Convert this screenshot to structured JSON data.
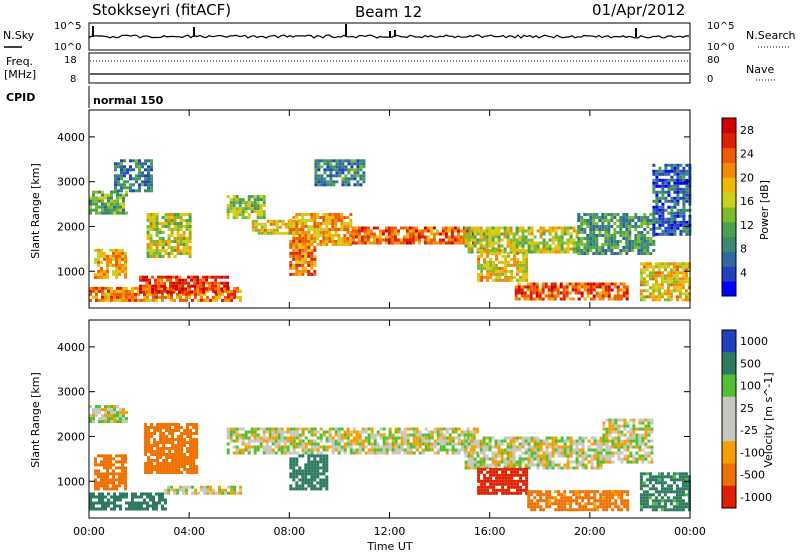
{
  "header": {
    "station": "Stokkseyri (fitACF)",
    "beam": "Beam 12",
    "date": "01/Apr/2012"
  },
  "noise_panel": {
    "left_label": "N.Sky",
    "left_ticks": [
      "10^5",
      "10^0"
    ],
    "right_label": "N.Search",
    "right_ticks": [
      "10^5",
      "10^0"
    ]
  },
  "freq_panel": {
    "left_label_1": "Freq.",
    "left_label_2": "[MHz]",
    "left_ticks": [
      "18",
      "8"
    ],
    "right_label": "Nave",
    "right_ticks": [
      "80",
      "0"
    ]
  },
  "cpid": {
    "label": "CPID",
    "value": "normal 150"
  },
  "time_axis": {
    "label": "Time UT",
    "ticks": [
      "00:00",
      "04:00",
      "08:00",
      "12:00",
      "16:00",
      "20:00",
      "00:00"
    ]
  },
  "range_axis": {
    "label": "Slant Range [km]",
    "ticks": [
      "1000",
      "2000",
      "3000",
      "4000"
    ]
  },
  "chart_data": [
    {
      "type": "heatmap",
      "name": "power",
      "ylabel": "Slant Range [km]",
      "xlabel": "Time UT",
      "xlim_hours": [
        0,
        24
      ],
      "ylim_km": [
        180,
        4600
      ],
      "colorbar": {
        "label": "Power [dB]",
        "ticks": [
          "4",
          "8",
          "12",
          "16",
          "20",
          "24",
          "28"
        ],
        "range": [
          0,
          30
        ]
      },
      "regions": [
        {
          "t": [
            0.0,
            6.0
          ],
          "r": [
            380,
            650
          ],
          "v": 22
        },
        {
          "t": [
            2.0,
            5.5
          ],
          "r": [
            500,
            900
          ],
          "v": 26
        },
        {
          "t": [
            0.2,
            1.5
          ],
          "r": [
            850,
            1500
          ],
          "v": 20
        },
        {
          "t": [
            0.0,
            1.5
          ],
          "r": [
            2300,
            2800
          ],
          "v": 12
        },
        {
          "t": [
            1.0,
            2.5
          ],
          "r": [
            2800,
            3500
          ],
          "v": 8
        },
        {
          "t": [
            2.3,
            4.0
          ],
          "r": [
            1300,
            2300
          ],
          "v": 16
        },
        {
          "t": [
            5.5,
            7.0
          ],
          "r": [
            2200,
            2700
          ],
          "v": 14
        },
        {
          "t": [
            6.5,
            8.5
          ],
          "r": [
            1850,
            2150
          ],
          "v": 18
        },
        {
          "t": [
            8.0,
            10.5
          ],
          "r": [
            1600,
            2300
          ],
          "v": 20
        },
        {
          "t": [
            8.0,
            9.0
          ],
          "r": [
            900,
            1700
          ],
          "v": 22
        },
        {
          "t": [
            10.5,
            15.5
          ],
          "r": [
            1650,
            2000
          ],
          "v": 24
        },
        {
          "t": [
            9.0,
            11.0
          ],
          "r": [
            2900,
            3500
          ],
          "v": 8
        },
        {
          "t": [
            15.0,
            19.5
          ],
          "r": [
            1400,
            2000
          ],
          "v": 16
        },
        {
          "t": [
            15.5,
            17.5
          ],
          "r": [
            800,
            1500
          ],
          "v": 18
        },
        {
          "t": [
            17.0,
            21.5
          ],
          "r": [
            350,
            750
          ],
          "v": 24
        },
        {
          "t": [
            19.5,
            22.5
          ],
          "r": [
            1400,
            2300
          ],
          "v": 10
        },
        {
          "t": [
            22.0,
            24.0
          ],
          "r": [
            350,
            1200
          ],
          "v": 18
        },
        {
          "t": [
            22.5,
            24.0
          ],
          "r": [
            1800,
            3400
          ],
          "v": 6
        }
      ]
    },
    {
      "type": "heatmap",
      "name": "velocity",
      "ylabel": "Slant Range [km]",
      "xlabel": "Time UT",
      "xlim_hours": [
        0,
        24
      ],
      "ylim_km": [
        180,
        4600
      ],
      "colorbar": {
        "label": "Velocity [m s^-1]",
        "ticks": [
          "1000",
          "500",
          "100",
          "25",
          "-25",
          "-100",
          "-500",
          "-1000"
        ],
        "range": [
          -1000,
          1000
        ]
      },
      "regions": [
        {
          "t": [
            0.0,
            3.0
          ],
          "r": [
            350,
            750
          ],
          "v": 200
        },
        {
          "t": [
            3.0,
            6.0
          ],
          "r": [
            700,
            900
          ],
          "v": 0
        },
        {
          "t": [
            0.2,
            1.5
          ],
          "r": [
            800,
            1600
          ],
          "v": -300
        },
        {
          "t": [
            2.2,
            4.3
          ],
          "r": [
            1200,
            2300
          ],
          "v": -200
        },
        {
          "t": [
            0.0,
            1.5
          ],
          "r": [
            2300,
            2700
          ],
          "v": 0
        },
        {
          "t": [
            5.5,
            15.5
          ],
          "r": [
            1650,
            2200
          ],
          "v": 0
        },
        {
          "t": [
            8.0,
            9.5
          ],
          "r": [
            800,
            1600
          ],
          "v": 400
        },
        {
          "t": [
            15.0,
            20.5
          ],
          "r": [
            1300,
            2000
          ],
          "v": 0
        },
        {
          "t": [
            15.5,
            17.5
          ],
          "r": [
            700,
            1300
          ],
          "v": -600
        },
        {
          "t": [
            17.5,
            21.5
          ],
          "r": [
            350,
            800
          ],
          "v": -150
        },
        {
          "t": [
            20.5,
            22.5
          ],
          "r": [
            1400,
            2400
          ],
          "v": 0
        },
        {
          "t": [
            22.0,
            24.0
          ],
          "r": [
            350,
            1200
          ],
          "v": 150
        }
      ]
    }
  ]
}
